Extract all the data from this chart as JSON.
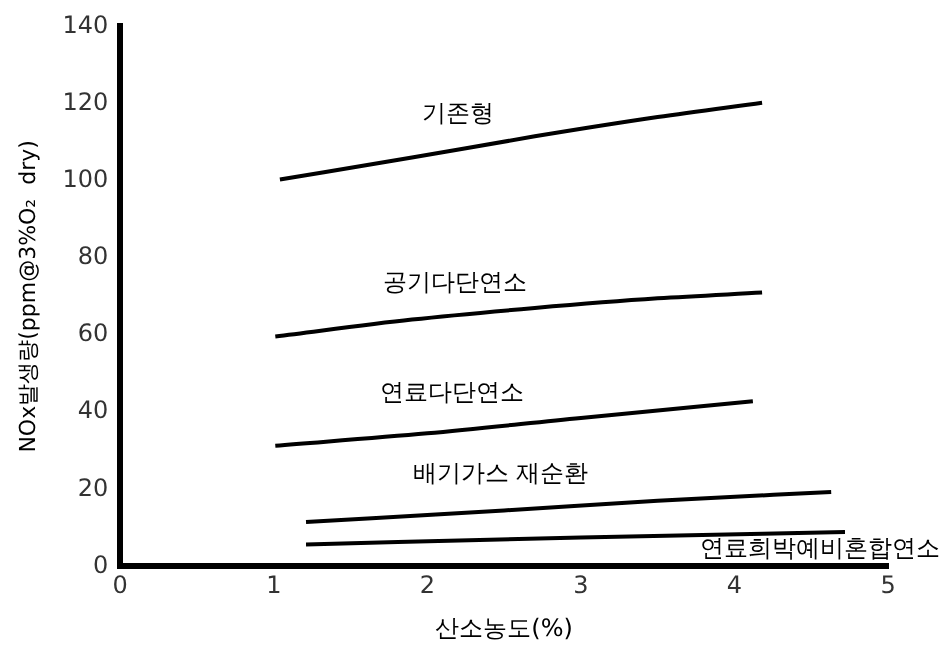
{
  "chart_data": {
    "type": "line",
    "xlabel": "산소농도(%)",
    "ylabel": "NOx발생량(ppm@3%O₂  dry)",
    "xlim": [
      0,
      5
    ],
    "xticks": [
      0,
      1,
      2,
      3,
      4,
      5
    ],
    "ylim": [
      0,
      140
    ],
    "yticks": [
      0,
      20,
      40,
      60,
      80,
      100,
      120,
      140
    ],
    "grid": false,
    "legend": false,
    "marker": "none",
    "line_style": "solid",
    "series": [
      {
        "name": "기존형",
        "color": "#000000",
        "x": [
          1.04,
          1.9,
          2.7,
          3.5,
          4.18
        ],
        "values": [
          100.3,
          106,
          111.5,
          116.5,
          120.2
        ]
      },
      {
        "name": "공기다단연소",
        "color": "#000000",
        "x": [
          1.01,
          1.9,
          2.7,
          3.5,
          4.18
        ],
        "values": [
          59.6,
          64,
          67,
          69.5,
          71
        ]
      },
      {
        "name": "연료다단연소",
        "color": "#000000",
        "x": [
          1.01,
          2,
          3,
          4.12
        ],
        "values": [
          31.3,
          34.5,
          38.5,
          42.8
        ]
      },
      {
        "name": "배기가스 재순환",
        "color": "#000000",
        "x": [
          1.21,
          2.5,
          3.5,
          4.63
        ],
        "values": [
          11.5,
          14.5,
          17,
          19.3
        ]
      },
      {
        "name": "연료희박예비혼합연소",
        "color": "#000000",
        "x": [
          1.21,
          3,
          4.72
        ],
        "values": [
          5.7,
          7.5,
          8.9
        ]
      }
    ]
  }
}
